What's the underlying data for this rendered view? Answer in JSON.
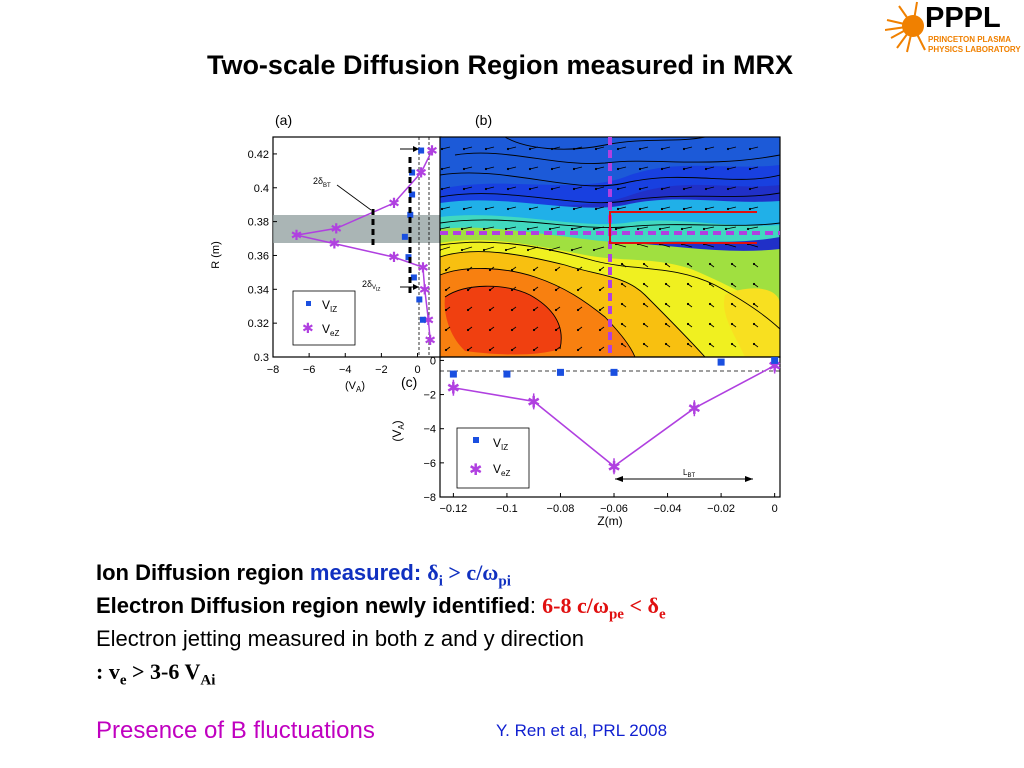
{
  "title": "Two-scale Diffusion Region measured in MRX",
  "logo": {
    "name": "PPPL",
    "line1": "PRINCETON PLASMA",
    "line2": "PHYSICS LABORATORY",
    "accent": "#f08000"
  },
  "caption": {
    "line1_text": "Ion Diffusion region",
    "line1_blue": "measured:",
    "line1_delta": "δ",
    "line1_sub_i": "i",
    "line1_rel": " > c/ω",
    "line1_sub_pi": "pi",
    "line2_text": "Electron Diffusion region newly identified",
    "line2_colon": ":",
    "line2_red_a": "6-8 c/ω",
    "line2_sub_pe": "pe",
    "line2_red_b": " < δ",
    "line2_sub_e": "e",
    "line3_text": "Electron jetting measured in both z and y direction",
    "line4_colon": ": v",
    "line4_sub_e": "e",
    "line4_rel": " > 3-6 V",
    "line4_sub_ai": "Ai"
  },
  "presence_text": "Presence of B fluctuations",
  "reference": "Y. Ren et al, PRL 2008",
  "chart_data": [
    {
      "panel": "(a)",
      "type": "scatter",
      "xlabel": "(V_A)",
      "ylabel": "R (m)",
      "xlim": [
        -8,
        1.3
      ],
      "ylim": [
        0.3,
        0.43
      ],
      "xticks": [
        "−8",
        "−6",
        "−4",
        "−2",
        "0"
      ],
      "yticks": [
        "0.3",
        "0.32",
        "0.34",
        "0.36",
        "0.38",
        "0.4",
        "0.42"
      ],
      "series": [
        {
          "name": "V_IZ",
          "color": "#1a4fe0",
          "points": [
            [
              0.2,
              0.422
            ],
            [
              -0.3,
              0.409
            ],
            [
              -0.3,
              0.396
            ],
            [
              -0.4,
              0.384
            ],
            [
              -0.7,
              0.371
            ],
            [
              -0.5,
              0.359
            ],
            [
              -0.2,
              0.347
            ],
            [
              0.1,
              0.334
            ],
            [
              0.3,
              0.322
            ]
          ]
        },
        {
          "name": "V_eZ",
          "color": "#b040e0",
          "points": [
            [
              0.8,
              0.422
            ],
            [
              0.2,
              0.409
            ],
            [
              -1.3,
              0.391
            ],
            [
              -4.5,
              0.376
            ],
            [
              -6.7,
              0.372
            ],
            [
              -4.6,
              0.367
            ],
            [
              -1.3,
              0.359
            ],
            [
              0.3,
              0.353
            ],
            [
              0.4,
              0.34
            ],
            [
              0.6,
              0.322
            ],
            [
              0.7,
              0.31
            ]
          ]
        }
      ],
      "annotations": [
        "2δ_BT",
        "2δ_Viz"
      ],
      "shaded_band_R": [
        0.366,
        0.383
      ]
    },
    {
      "panel": "(b)",
      "type": "heatmap",
      "description_labels": [],
      "markers": {
        "dashed_vertical_Z": -0.06,
        "dashed_horizontal_R": 0.373
      }
    },
    {
      "panel": "(c)",
      "type": "line",
      "xlabel": "Z(m)",
      "ylabel": "(V_A)",
      "xlim": [
        -0.125,
        0.002
      ],
      "ylim": [
        -8,
        0.2
      ],
      "xticks": [
        "−0.12",
        "−0.1",
        "−0.08",
        "−0.06",
        "−0.04",
        "−0.02",
        "0"
      ],
      "yticks": [
        "−8",
        "−6",
        "−4",
        "−2",
        "0"
      ],
      "series": [
        {
          "name": "V_IZ",
          "color": "#1a4fe0",
          "x": [
            -0.12,
            -0.1,
            -0.08,
            -0.06,
            -0.02,
            0
          ],
          "y": [
            -0.8,
            -0.8,
            -0.7,
            -0.7,
            -0.1,
            0
          ]
        },
        {
          "name": "V_eZ",
          "color": "#b040e0",
          "x": [
            -0.12,
            -0.09,
            -0.06,
            -0.03,
            0
          ],
          "y": [
            -1.6,
            -2.4,
            -6.2,
            -2.8,
            -0.3
          ]
        }
      ],
      "annotation": "L_BT"
    }
  ],
  "figure_labels": {
    "a": "(a)",
    "b": "(b)",
    "c": "(c)",
    "legend_viz": "V",
    "legend_viz_sub": "IZ",
    "legend_vez": "V",
    "legend_vez_sub": "eZ",
    "annot_2dbt": "2δ",
    "annot_2dbt_sub": "BT",
    "annot_2dviz": "2δ",
    "annot_2dviz_sub": "V",
    "annot_2dviz_subsub": "IZ",
    "annot_lbt": "L",
    "annot_lbt_sub": "BT",
    "rlabel": "R (m)",
    "valabel": "(V",
    "valabel_sub": "A",
    "valabel_close": ")",
    "zlabel": "Z(m)"
  }
}
